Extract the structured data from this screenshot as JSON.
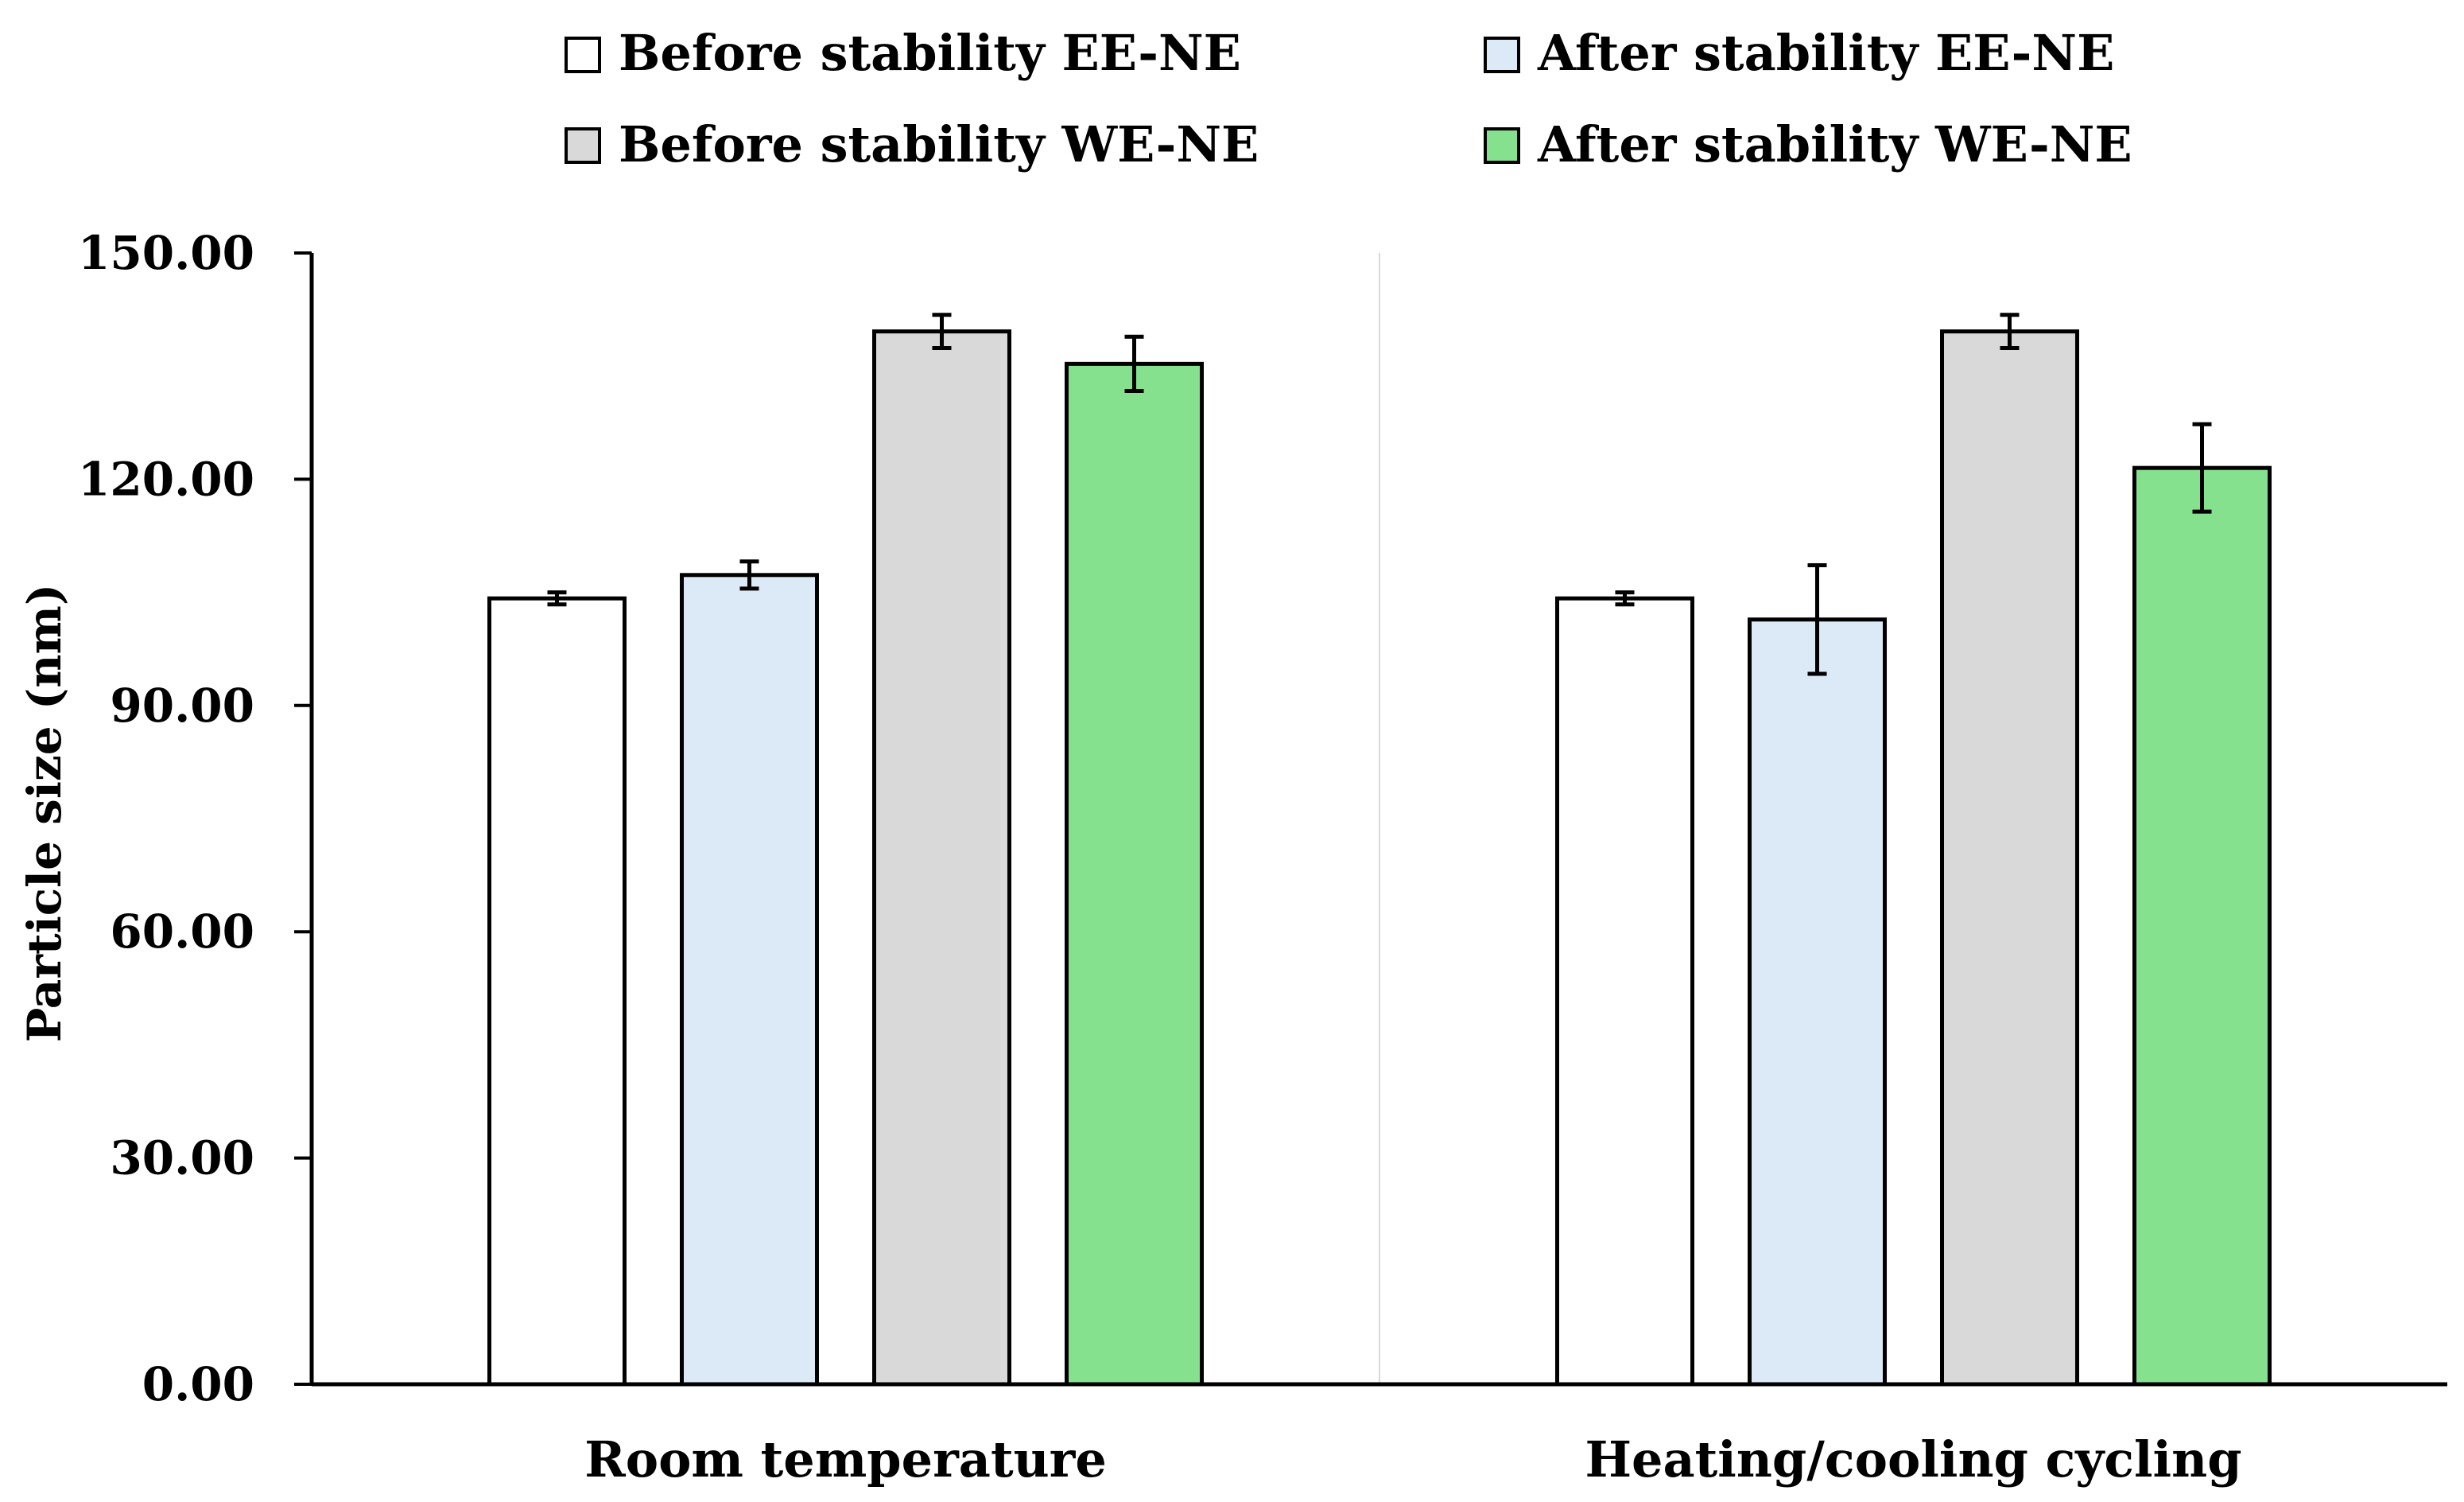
{
  "chart_data": {
    "type": "bar",
    "categories": [
      "Room temperature",
      "Heating/cooling cycling"
    ],
    "series": [
      {
        "name": "Before stability EE-NE",
        "color": "#ffffff",
        "values": [
          104.2,
          104.2
        ],
        "errors": [
          0.8,
          0.8
        ]
      },
      {
        "name": "After stability EE-NE",
        "color": "#dce9f7",
        "values": [
          107.3,
          101.4
        ],
        "errors": [
          1.8,
          7.2
        ]
      },
      {
        "name": "Before stability WE-NE",
        "color": "#d9d9d9",
        "values": [
          139.6,
          139.6
        ],
        "errors": [
          2.2,
          2.2
        ]
      },
      {
        "name": "After stability WE-NE",
        "color": "#86e18f",
        "values": [
          135.3,
          121.5
        ],
        "errors": [
          3.6,
          5.8
        ]
      }
    ],
    "xlabel": "",
    "ylabel": "Particle size (nm)",
    "ylim": [
      0,
      150
    ],
    "yticks": [
      "0.00",
      "30.00",
      "60.00",
      "90.00",
      "120.00",
      "150.00"
    ],
    "legend_position": "top",
    "grid": false
  }
}
